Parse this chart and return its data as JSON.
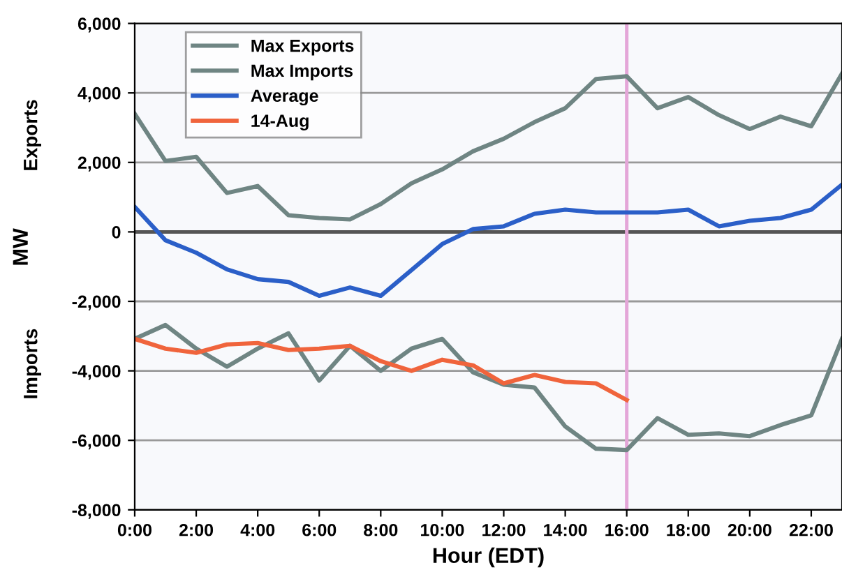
{
  "chart_data": {
    "type": "line",
    "xlabel": "Hour (EDT)",
    "ylabel": "MW",
    "annotations": [
      "Exports",
      "Imports"
    ],
    "x": [
      0,
      1,
      2,
      3,
      4,
      5,
      6,
      7,
      8,
      9,
      10,
      11,
      12,
      13,
      14,
      15,
      16,
      17,
      18,
      19,
      20,
      21,
      22,
      23
    ],
    "series": [
      {
        "name": "Max Exports",
        "color": "#6f8583",
        "values": [
          3400,
          2040,
          2160,
          1120,
          1320,
          480,
          400,
          360,
          800,
          1400,
          1800,
          2320,
          2680,
          3160,
          3560,
          4400,
          4480,
          3560,
          3880,
          3360,
          2960,
          3320,
          3040,
          4560
        ]
      },
      {
        "name": "Max Imports",
        "color": "#6f8583",
        "values": [
          -3080,
          -2680,
          -3360,
          -3880,
          -3360,
          -2920,
          -4280,
          -3280,
          -4000,
          -3360,
          -3080,
          -4040,
          -4400,
          -4480,
          -5600,
          -6240,
          -6280,
          -5360,
          -5840,
          -5800,
          -5880,
          -5560,
          -5280,
          -3080
        ]
      },
      {
        "name": "Average",
        "color": "#2b5fc8",
        "values": [
          720,
          -240,
          -600,
          -1080,
          -1360,
          -1440,
          -1840,
          -1600,
          -1840,
          -1100,
          -350,
          80,
          160,
          520,
          640,
          560,
          560,
          560,
          640,
          160,
          320,
          400,
          640,
          1360
        ]
      },
      {
        "name": "14-Aug",
        "color": "#f0643c",
        "values": [
          -3080,
          -3360,
          -3480,
          -3240,
          -3200,
          -3400,
          -3360,
          -3280,
          -3720,
          -4000,
          -3680,
          -3840,
          -4360,
          -4120,
          -4320,
          -4360,
          -4840,
          null,
          null,
          null,
          null,
          null,
          null,
          null
        ]
      }
    ],
    "xlim": [
      0,
      23
    ],
    "xticks": [
      {
        "value": 0,
        "label": "0:00"
      },
      {
        "value": 2,
        "label": "2:00"
      },
      {
        "value": 4,
        "label": "4:00"
      },
      {
        "value": 6,
        "label": "6:00"
      },
      {
        "value": 8,
        "label": "8:00"
      },
      {
        "value": 10,
        "label": "10:00"
      },
      {
        "value": 12,
        "label": "12:00"
      },
      {
        "value": 14,
        "label": "14:00"
      },
      {
        "value": 16,
        "label": "16:00"
      },
      {
        "value": 18,
        "label": "18:00"
      },
      {
        "value": 20,
        "label": "20:00"
      },
      {
        "value": 22,
        "label": "22:00"
      }
    ],
    "ylim": [
      -8000,
      6000
    ],
    "yticks": [
      {
        "value": -8000,
        "label": "-8,000"
      },
      {
        "value": -6000,
        "label": "-6,000"
      },
      {
        "value": -4000,
        "label": "-4,000"
      },
      {
        "value": -2000,
        "label": "-2,000"
      },
      {
        "value": 0,
        "label": "0"
      },
      {
        "value": 2000,
        "label": "2,000"
      },
      {
        "value": 4000,
        "label": "4,000"
      },
      {
        "value": 6000,
        "label": "6,000"
      }
    ],
    "ref_lines": [
      {
        "axis": "y",
        "value": 0,
        "color": "#555555"
      },
      {
        "axis": "x",
        "value": 16,
        "color": "#e4a6d8"
      }
    ],
    "grid": "y",
    "legend": "top left",
    "marker": "none",
    "line_style": "solid"
  }
}
